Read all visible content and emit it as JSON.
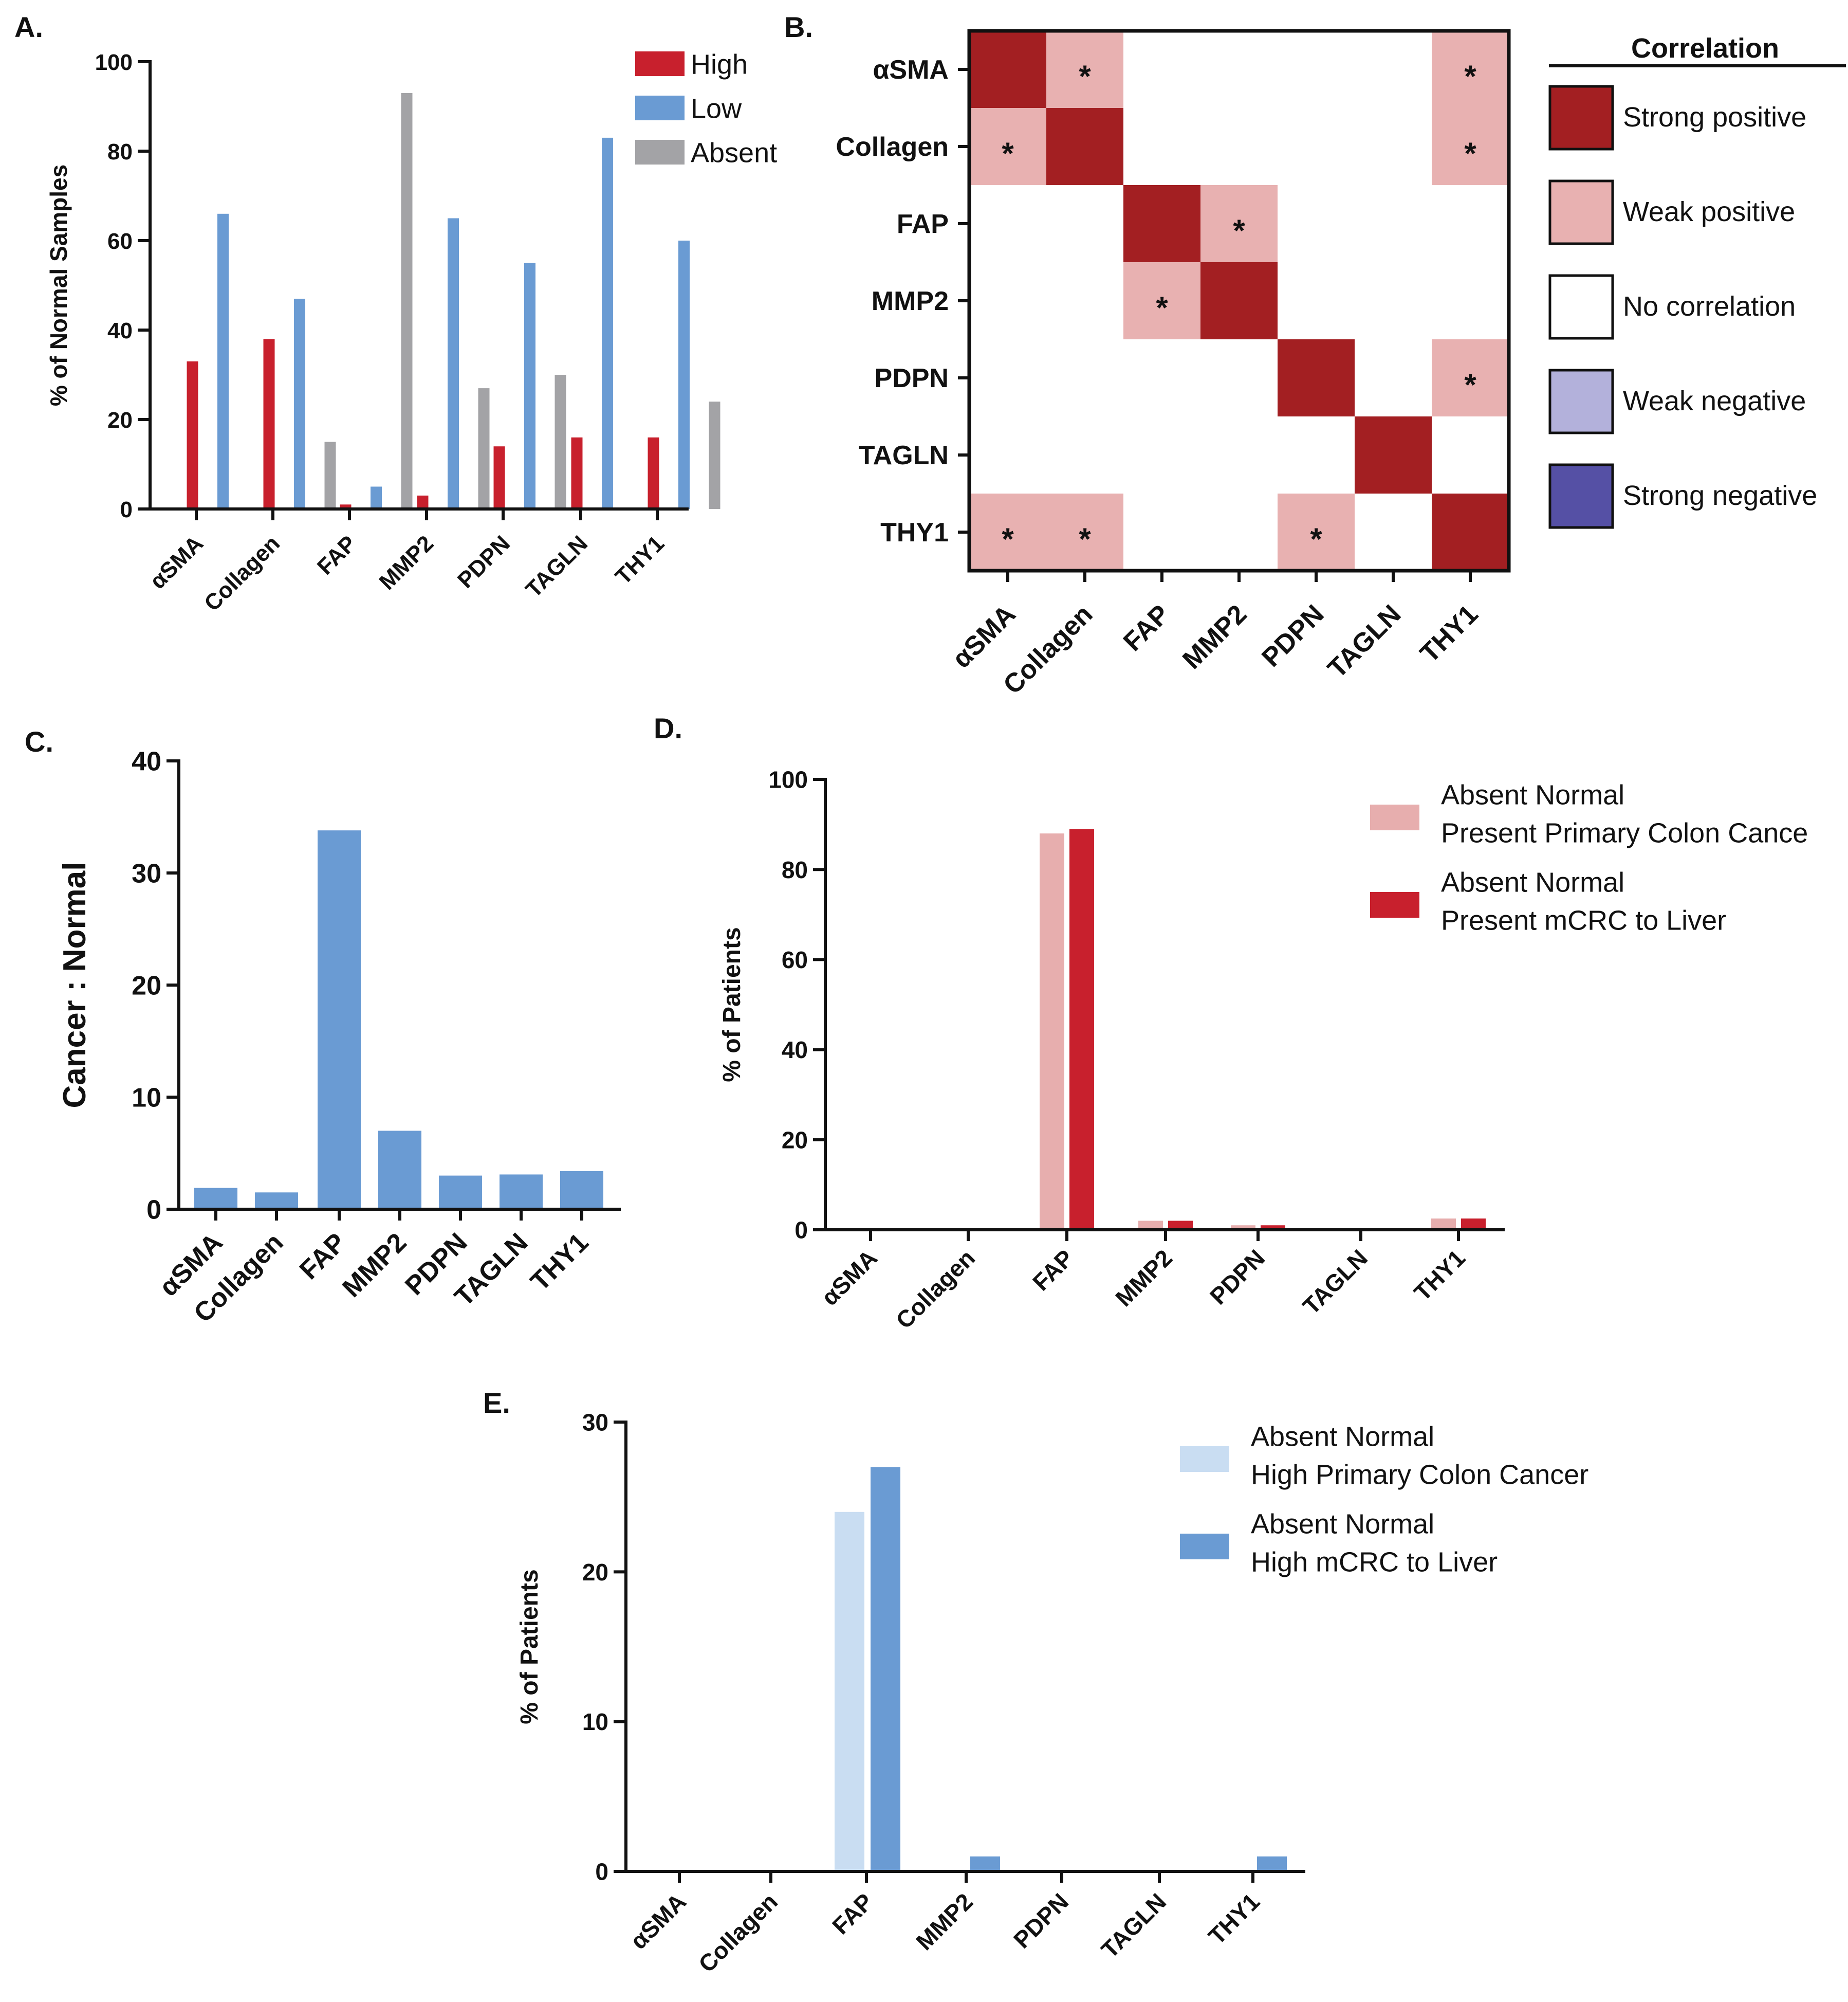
{
  "chart_data": [
    {
      "id": "A",
      "panel_label": "A.",
      "type": "bar",
      "categories": [
        "αSMA",
        "Collagen",
        "FAP",
        "MMP2",
        "PDPN",
        "TAGLN",
        "THY1"
      ],
      "series": [
        {
          "name": "High",
          "color": "#c8202d",
          "values": [
            33,
            38,
            1,
            3,
            14,
            16,
            16
          ]
        },
        {
          "name": "Low",
          "color": "#6a9bd3",
          "values": [
            66,
            47,
            5,
            65,
            55,
            83,
            60
          ]
        },
        {
          "name": "Absent",
          "color": "#a3a3a6",
          "values": [
            0,
            15,
            93,
            27,
            30,
            0,
            24
          ]
        }
      ],
      "ylabel": "% of Normal Samples",
      "ylim": [
        0,
        100
      ],
      "yticks": [
        0,
        20,
        40,
        60,
        80,
        100
      ],
      "legend_position": "top-right"
    },
    {
      "id": "B",
      "panel_label": "B.",
      "type": "heatmap",
      "rows": [
        "αSMA",
        "Collagen",
        "FAP",
        "MMP2",
        "PDPN",
        "TAGLN",
        "THY1"
      ],
      "columns": [
        "αSMA",
        "Collagen",
        "FAP",
        "MMP2",
        "PDPN",
        "TAGLN",
        "THY1"
      ],
      "matrix": [
        [
          "strong_pos",
          "weak_pos",
          "none",
          "none",
          "none",
          "none",
          "weak_pos"
        ],
        [
          "weak_pos",
          "strong_pos",
          "none",
          "none",
          "none",
          "none",
          "weak_pos"
        ],
        [
          "none",
          "none",
          "strong_pos",
          "weak_pos",
          "none",
          "none",
          "none"
        ],
        [
          "none",
          "none",
          "weak_pos",
          "strong_pos",
          "none",
          "none",
          "none"
        ],
        [
          "none",
          "none",
          "none",
          "none",
          "strong_pos",
          "none",
          "weak_pos"
        ],
        [
          "none",
          "none",
          "none",
          "none",
          "none",
          "strong_pos",
          "none"
        ],
        [
          "weak_pos",
          "weak_pos",
          "none",
          "none",
          "weak_pos",
          "none",
          "strong_pos"
        ]
      ],
      "significant": [
        [
          0,
          1,
          0,
          0,
          0,
          0,
          1
        ],
        [
          1,
          0,
          0,
          0,
          0,
          0,
          1
        ],
        [
          0,
          0,
          0,
          1,
          0,
          0,
          0
        ],
        [
          0,
          0,
          1,
          0,
          0,
          0,
          0
        ],
        [
          0,
          0,
          0,
          0,
          0,
          0,
          1
        ],
        [
          0,
          0,
          0,
          0,
          0,
          0,
          0
        ],
        [
          1,
          1,
          0,
          0,
          1,
          0,
          0
        ]
      ],
      "star_symbol": "*",
      "legend_title": "Correlation",
      "legend": [
        {
          "key": "strong_pos",
          "label": "Strong positive",
          "color": "#a31f22"
        },
        {
          "key": "weak_pos",
          "label": "Weak positive",
          "color": "#e8b1b1"
        },
        {
          "key": "none",
          "label": "No correlation",
          "color": "#ffffff"
        },
        {
          "key": "weak_neg",
          "label": "Weak negative",
          "color": "#b3b1db"
        },
        {
          "key": "strong_neg",
          "label": "Strong negative",
          "color": "#5550a5"
        }
      ]
    },
    {
      "id": "C",
      "panel_label": "C.",
      "type": "bar",
      "categories": [
        "αSMA",
        "Collagen",
        "FAP",
        "MMP2",
        "PDPN",
        "TAGLN",
        "THY1"
      ],
      "series": [
        {
          "name": "Cancer : Normal",
          "color": "#6a9bd3",
          "values": [
            1.9,
            1.5,
            33.8,
            7.0,
            3.0,
            3.1,
            3.4
          ]
        }
      ],
      "ylabel": "Cancer : Normal",
      "ylim": [
        0,
        40
      ],
      "yticks": [
        0,
        10,
        20,
        30,
        40
      ]
    },
    {
      "id": "D",
      "panel_label": "D.",
      "type": "bar",
      "categories": [
        "αSMA",
        "Collagen",
        "FAP",
        "MMP2",
        "PDPN",
        "TAGLN",
        "THY1"
      ],
      "series": [
        {
          "name": "Absent Normal Present Primary Colon Cance",
          "legend_lines": [
            "Absent Normal",
            "Present Primary Colon Cance"
          ],
          "color": "#e7aeae",
          "values": [
            0,
            0,
            88,
            2,
            1,
            0,
            2.5
          ]
        },
        {
          "name": "Absent Normal Present mCRC to Liver",
          "legend_lines": [
            "Absent Normal",
            "Present mCRC to Liver"
          ],
          "color": "#c8202d",
          "values": [
            0,
            0,
            89,
            2,
            1,
            0,
            2.5
          ]
        }
      ],
      "ylabel": "% of Patients",
      "ylim": [
        0,
        100
      ],
      "yticks": [
        0,
        20,
        40,
        60,
        80,
        100
      ],
      "legend_position": "top-right"
    },
    {
      "id": "E",
      "panel_label": "E.",
      "type": "bar",
      "categories": [
        "αSMA",
        "Collagen",
        "FAP",
        "MMP2",
        "PDPN",
        "TAGLN",
        "THY1"
      ],
      "series": [
        {
          "name": "Absent Normal High Primary Colon Cancer",
          "legend_lines": [
            "Absent Normal",
            "High Primary Colon Cancer"
          ],
          "color": "#c9ddf2",
          "values": [
            0,
            0,
            24,
            0,
            0,
            0,
            0
          ]
        },
        {
          "name": "Absent Normal High mCRC to Liver",
          "legend_lines": [
            "Absent Normal",
            "High mCRC to Liver"
          ],
          "color": "#6a9bd3",
          "values": [
            0,
            0,
            27,
            1,
            0,
            0,
            1
          ]
        }
      ],
      "ylabel": "% of Patients",
      "ylim": [
        0,
        30
      ],
      "yticks": [
        0,
        10,
        20,
        30
      ],
      "legend_position": "top-right"
    }
  ]
}
